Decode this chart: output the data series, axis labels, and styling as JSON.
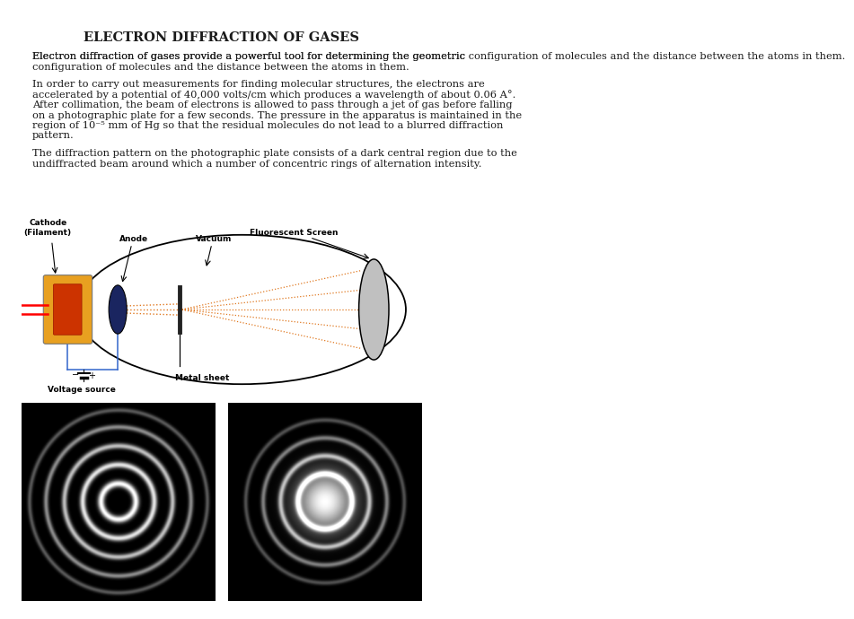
{
  "title": "ELECTRON DIFFRACTION OF GASES",
  "para1": "Electron diffraction of gases provide a powerful tool for determining the geometric configuration of molecules and the distance between the atoms in them.",
  "para2_line1": "In order to carry out measurements for finding molecular structures, the electrons are",
  "para2_line2": "accelerated by a potential of 40,000 volts/cm which produces a wavelength of about 0.06 A°.",
  "para2_line3": "After collimation, the beam of electrons is allowed to pass through a jet of gas before falling",
  "para2_line4": "on a photographic plate for a few seconds. The pressure in the apparatus is maintained in the",
  "para2_line5": "region of 10⁻⁵ mm of Hg so that the residual molecules do not lead to a blurred diffraction",
  "para2_line6": "pattern.",
  "para3_line1": "The diffraction pattern on the photographic plate consists of a dark central region due to the",
  "para3_line2": "undiffracted beam around which a number of concentric rings of alternation intensity.",
  "label_cathode": "Cathode\n(Filament)",
  "label_anode": "Anode",
  "label_vacuum": "Vacuum",
  "label_fluorescent": "Fluorescent Screen",
  "label_voltage": "Voltage source",
  "label_metal": "Metal sheet",
  "bg_color": "#ffffff",
  "text_color": "#1a1a1a",
  "cathode_color": "#E8A020",
  "cathode_inner_color": "#CC3300",
  "anode_color": "#1a2560",
  "beam_color": "#E07820",
  "screen_color": "#c0c0c0",
  "wire_color": "#3366cc"
}
